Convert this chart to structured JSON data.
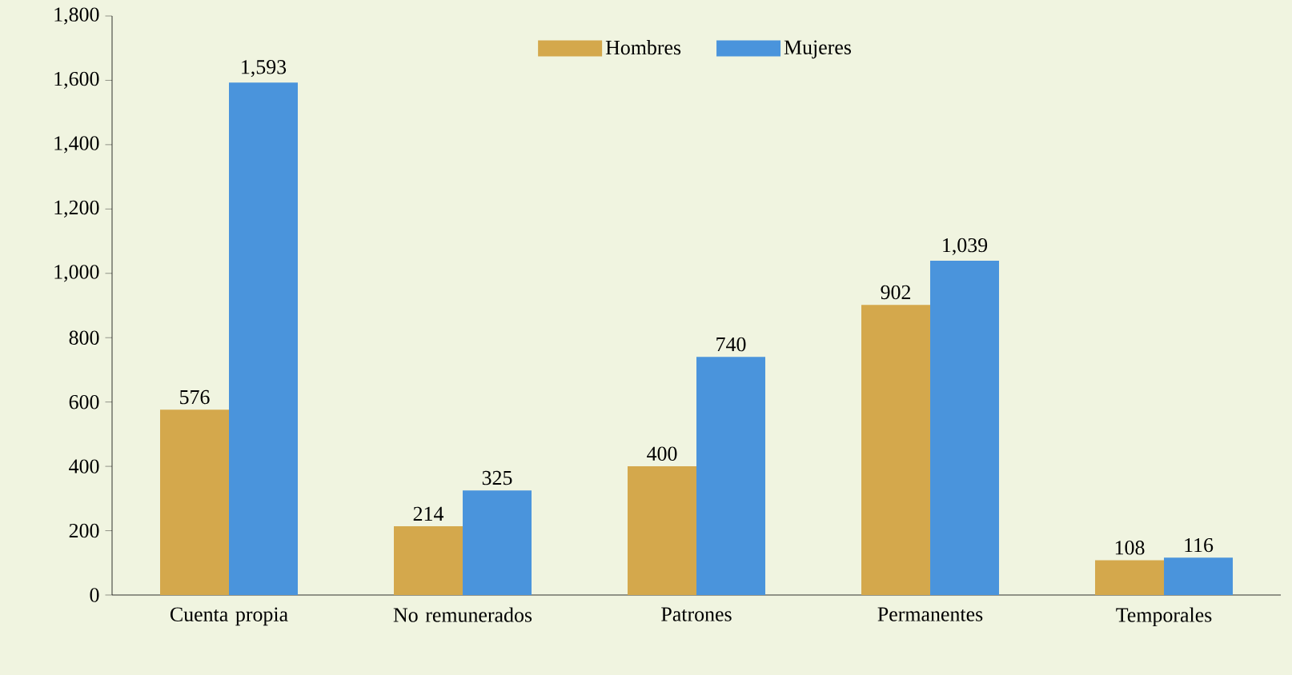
{
  "chart_data": {
    "type": "bar",
    "categories": [
      "Cuenta propia",
      "No remunerados",
      "Patrones",
      "Permanentes",
      "Temporales"
    ],
    "series": [
      {
        "name": "Hombres",
        "color": "#d4a84c",
        "values": [
          576,
          214,
          400,
          902,
          108
        ],
        "value_labels": [
          "576",
          "214",
          "400",
          "902",
          "108"
        ]
      },
      {
        "name": "Mujeres",
        "color": "#4a94dc",
        "values": [
          1593,
          325,
          740,
          1039,
          116
        ],
        "value_labels": [
          "1,593",
          "325",
          "740",
          "1,039",
          "116"
        ]
      }
    ],
    "ylim": [
      0,
      1800
    ],
    "yticks": [
      0,
      200,
      400,
      600,
      800,
      {
        "value": 1000,
        "label": "1,000"
      },
      {
        "value": 1200,
        "label": "1,200"
      },
      {
        "value": 1400,
        "label": "1,400"
      },
      {
        "value": 1600,
        "label": "1,600"
      },
      {
        "value": 1800,
        "label": "1,800"
      }
    ],
    "grid": false,
    "legend": "top"
  }
}
